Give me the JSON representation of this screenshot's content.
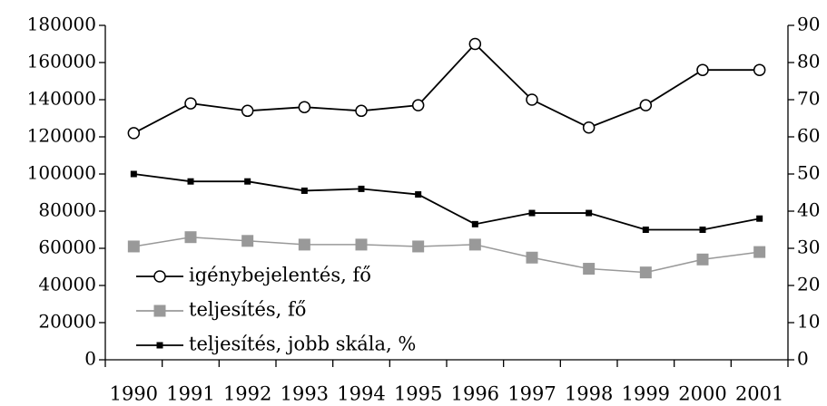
{
  "chart_data": {
    "type": "line",
    "categories": [
      "1990",
      "1991",
      "1992",
      "1993",
      "1994",
      "1995",
      "1996",
      "1997",
      "1998",
      "1999",
      "2000",
      "2001"
    ],
    "series": [
      {
        "name": "igénybejelentés, fő",
        "color": "#000000",
        "marker": "circle",
        "values": [
          122000,
          138000,
          134000,
          136000,
          134000,
          137000,
          170000,
          140000,
          125000,
          137000,
          156000,
          156000
        ]
      },
      {
        "name": "teljesítés, fő",
        "color": "#999999",
        "marker": "square",
        "values": [
          61000,
          66000,
          64000,
          62000,
          62000,
          61000,
          62000,
          55000,
          49000,
          47000,
          54000,
          58000
        ]
      },
      {
        "name": "teljesítés, jobb skála, %",
        "color": "#000000",
        "marker": "small-square",
        "axis": "y2",
        "values": [
          50,
          48,
          48,
          45.5,
          46,
          44.5,
          36.5,
          39.5,
          39.5,
          35,
          35,
          38
        ]
      }
    ],
    "ylim": [
      0,
      180000
    ],
    "yticks": [
      0,
      20000,
      40000,
      60000,
      80000,
      100000,
      120000,
      140000,
      160000,
      180000
    ],
    "y2lim": [
      0,
      90
    ],
    "y2ticks": [
      0,
      10,
      20,
      30,
      40,
      50,
      60,
      70,
      80,
      90
    ],
    "grid": false,
    "legend": "lower left"
  }
}
